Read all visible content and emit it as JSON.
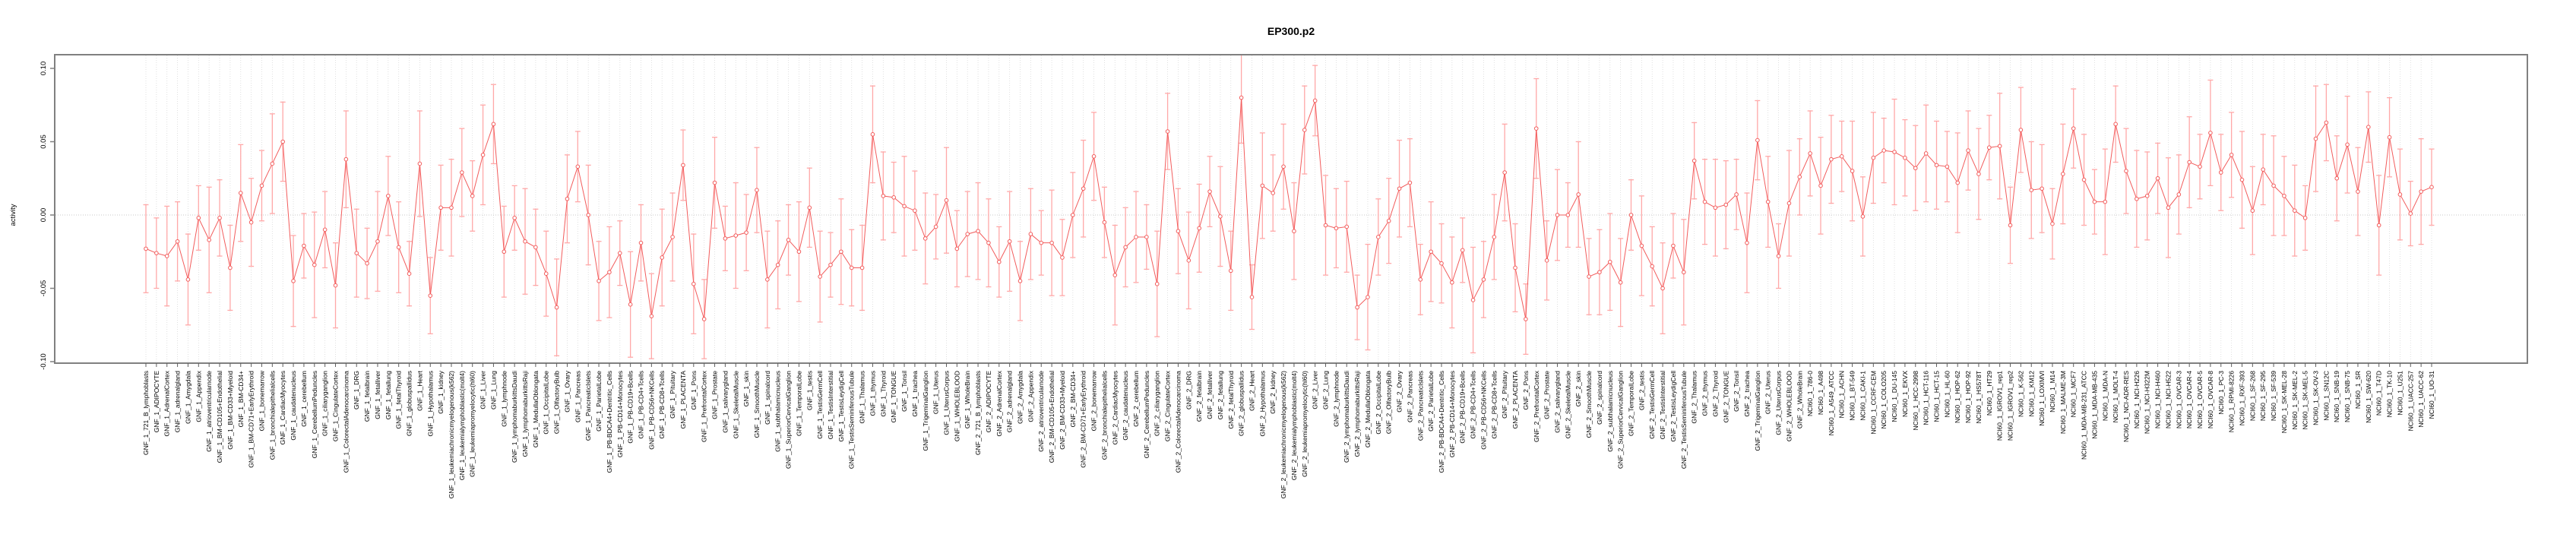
{
  "chart_data": {
    "type": "line",
    "title": "EP300.p2",
    "ylabel": "activity",
    "xlabel": "",
    "ylim": [
      -0.113,
      0.113
    ],
    "yticks": [
      -0.1,
      -0.05,
      0.0,
      0.05,
      0.1
    ],
    "ytick_labels": [
      "-0.10",
      "-0.05",
      "0.00",
      "0.05",
      "0.10"
    ],
    "legend": "none",
    "grid": "vertical dotted gridline at every category; horizontal dotted line at y=0",
    "point_style": "open circle with vertical error bars and caps",
    "colors": {
      "line": "#f25c5c",
      "point_stroke": "#f25c5c",
      "point_fill": "#ffffff",
      "error_bar": "#ffa8a8",
      "grid": "#d9d9d9",
      "zero_line": "#c9c9c9",
      "axis_box": "#808080",
      "tick": "#606060",
      "text": "#000000"
    },
    "categories": [
      "GNF_1_721_B_lymphoblasts",
      "GNF_1_ADIPOCYTE",
      "GNF_1_AdrenalCortex",
      "GNF_1_adrenalgland",
      "GNF_1_Amygdala",
      "GNF_1_Appendix",
      "GNF_1_atrioventricularnode",
      "GNF_1_BM-CD105+Endothelial",
      "GNF_1_BM-CD33+Myeloid",
      "GNF_1_BM-CD34+",
      "GNF_1_BM-CD71+EarlyErythroid",
      "GNF_1_bonemarrow",
      "GNF_1_bronchialepithelialcells",
      "GNF_1_CardiacMyocytes",
      "GNF_1_caudatenucleus",
      "GNF_1_cerebellum",
      "GNF_1_CerebellumPeduncles",
      "GNF_1_ciliaryganglion",
      "GNF_1_CingulateCortex",
      "GNF_1_ColorectalAdenocarcinoma",
      "GNF_1_DRG",
      "GNF_1_fetalbrain",
      "GNF_1_fetalliver",
      "GNF_1_fetallung",
      "GNF_1_fetalThyroid",
      "GNF_1_globuspallidus",
      "GNF_1_Heart",
      "GNF_1_Hypothalamus",
      "GNF_1_kidney",
      "GNF_1_leukemiachronicmyelogenous(k562)",
      "GNF_1_leukemialymphoblastic(molt4)",
      "GNF_1_leukemiapromyelocytic(hl60)",
      "GNF_1_Liver",
      "GNF_1_Lung",
      "GNF_1_lymphnode",
      "GNF_1_lymphomaburkittsDaudi",
      "GNF_1_lymphomaburkittsRaji",
      "GNF_1_MedullaOblongata",
      "GNF_1_OccipitalLobe",
      "GNF_1_OlfactoryBulb",
      "GNF_1_Ovary",
      "GNF_1_Pancreas",
      "GNF_1_PancreaticIslets",
      "GNF_1_ParietalLobe",
      "GNF_1_PB-BDCA4+Dentritic_Cells",
      "GNF_1_PB-CD14+Monocytes",
      "GNF_1_PB-CD19+Bcells",
      "GNF_1_PB-CD4+Tcells",
      "GNF_1_PB-CD56+NKCells",
      "GNF_1_PB-CD8+Tcells",
      "GNF_1_Pituitary",
      "GNF_1_PLACENTA",
      "GNF_1_Pons",
      "GNF_1_PrefrontalCortex",
      "GNF_1_Prostate",
      "GNF_1_salivarygland",
      "GNF_1_SkeletalMuscle",
      "GNF_1_skin",
      "GNF_1_SmoothMuscle",
      "GNF_1_spinalcord",
      "GNF_1_subthalamicnucleus",
      "GNF_1_SuperiorCervicalGanglion",
      "GNF_1_TemporalLobe",
      "GNF_1_testis",
      "GNF_1_TestisGermCell",
      "GNF_1_TestisInterstitial",
      "GNF_1_TestisLeydigCell",
      "GNF_1_TestisSeminiferousTubule",
      "GNF_1_Thalamus",
      "GNF_1_thymus",
      "GNF_1_Thyroid",
      "GNF_1_TONGUE",
      "GNF_1_Tonsil",
      "GNF_1_trachea",
      "GNF_1_TrigeminalGanglion",
      "GNF_1_Uterus",
      "GNF_1_UterusCorpus",
      "GNF_1_WHOLEBLOOD",
      "GNF_1_WholeBrain",
      "GNF_2_721_B_lymphoblasts",
      "GNF_2_ADIPOCYTE",
      "GNF_2_AdrenalCortex",
      "GNF_2_adrenalgland",
      "GNF_2_Amygdala",
      "GNF_2_Appendix",
      "GNF_2_atrioventricularnode",
      "GNF_2_BM-CD105+Endothelial",
      "GNF_2_BM-CD33+Myeloid",
      "GNF_2_BM-CD34+",
      "GNF_2_BM-CD71+EarlyErythroid",
      "GNF_2_bonemarrow",
      "GNF_2_bronchialepithelialcells",
      "GNF_2_CardiacMyocytes",
      "GNF_2_caudatenucleus",
      "GNF_2_cerebellum",
      "GNF_2_CerebellumPeduncles",
      "GNF_2_ciliaryganglion",
      "GNF_2_CingulateCortex",
      "GNF_2_ColorectalAdenocarcinoma",
      "GNF_2_DRG",
      "GNF_2_fetalbrain",
      "GNF_2_fetalliver",
      "GNF_2_fetallung",
      "GNF_2_fetalThyroid",
      "GNF_2_globuspallidus",
      "GNF_2_Heart",
      "GNF_2_Hypothalamus",
      "GNF_2_kidney",
      "GNF_2_leukemiachronicmyelogenous(k562)",
      "GNF_2_leukemialymphoblastic(molt4)",
      "GNF_2_leukemiapromyelocytic(hl60)",
      "GNF_2_Liver",
      "GNF_2_Lung",
      "GNF_2_lymphnode",
      "GNF_2_lymphomaburkittsDaudi",
      "GNF_2_lymphomaburkittsRaji",
      "GNF_2_MedullaOblongata",
      "GNF_2_OccipitalLobe",
      "GNF_2_OlfactoryBulb",
      "GNF_2_Ovary",
      "GNF_2_Pancreas",
      "GNF_2_PancreaticIslets",
      "GNF_2_ParietalLobe",
      "GNF_2_PB-BDCA4+Dentritic_Cells",
      "GNF_2_PB-CD14+Monocytes",
      "GNF_2_PB-CD19+Bcells",
      "GNF_2_PB-CD4+Tcells",
      "GNF_2_PB-CD56+NKCells",
      "GNF_2_PB-CD8+Tcells",
      "GNF_2_Pituitary",
      "GNF_2_PLACENTA",
      "GNF_2_Pons",
      "GNF_2_PrefrontalCortex",
      "GNF_2_Prostate",
      "GNF_2_salivarygland",
      "GNF_2_SkeletalMuscle",
      "GNF_2_skin",
      "GNF_2_SmoothMuscle",
      "GNF_2_spinalcord",
      "GNF_2_subthalamicnucleus",
      "GNF_2_SuperiorCervicalGanglion",
      "GNF_2_TemporalLobe",
      "GNF_2_testis",
      "GNF_2_TestisGermCell",
      "GNF_2_TestisInterstitial",
      "GNF_2_TestisLeydigCell",
      "GNF_2_TestisSeminiferousTubule",
      "GNF_2_Thalamus",
      "GNF_2_thymus",
      "GNF_2_Thyroid",
      "GNF_2_TONGUE",
      "GNF_2_Tonsil",
      "GNF_2_trachea",
      "GNF_2_TrigeminalGanglion",
      "GNF_2_Uterus",
      "GNF_2_UterusCorpus",
      "GNF_2_WHOLEBLOOD",
      "GNF_2_WholeBrain",
      "NCI60_1_786-0",
      "NCI60_1_A498",
      "NCI60_1_A549_ATCC",
      "NCI60_1_ACHN",
      "NCI60_1_BT-549",
      "NCI60_1_CAKI-1",
      "NCI60_1_CCRF-CEM",
      "NCI60_1_COLO205",
      "NCI60_1_DU-145",
      "NCI60_1_EKVX",
      "NCI60_1_HCC-2998",
      "NCI60_1_HCT-116",
      "NCI60_1_HCT-15",
      "NCI60_1_HL-60",
      "NCI60_1_HOP-62",
      "NCI60_1_HOP-92",
      "NCI60_1_HS578T",
      "NCI60_1_HT29",
      "NCI60_1_IGROV1_rep1",
      "NCI60_1_IGROV1_rep2",
      "NCI60_1_K-562",
      "NCI60_1_KM12",
      "NCI60_1_LOXIMVI",
      "NCI60_1_M14",
      "NCI60_1_MALME-3M",
      "NCI60_1_MCF7",
      "NCI60_1_MDA-MB-231_ATCC",
      "NCI60_1_MDA-MB-435",
      "NCI60_1_MDA-N",
      "NCI60_1_MOLT-4",
      "NCI60_1_NCI-ADR-RES",
      "NCI60_1_NCI-H226",
      "NCI60_1_NCI-H322M",
      "NCI60_1_NCI-H460",
      "NCI60_1_NCI-H522",
      "NCI60_1_OVCAR-3",
      "NCI60_1_OVCAR-4",
      "NCI60_1_OVCAR-5",
      "NCI60_1_OVCAR-8",
      "NCI60_1_PC-3",
      "NCI60_1_RPMI-8226",
      "NCI60_1_RXF-393",
      "NCI60_1_SF-268",
      "NCI60_1_SF-295",
      "NCI60_1_SF-539",
      "NCI60_1_SK-MEL-28",
      "NCI60_1_SK-MEL-2",
      "NCI60_1_SK-MEL-5",
      "NCI60_1_SK-OV-3",
      "NCI60_1_SN12C",
      "NCI60_1_SNB-19",
      "NCI60_1_SNB-75",
      "NCI60_1_SR",
      "NCI60_1_SW-620",
      "NCI60_1_T47D",
      "NCI60_1_TK-10",
      "NCI60_1_U251",
      "NCI60_1_UACC-257",
      "NCI60_1_UACC-62",
      "NCI60_1_UO-31"
    ],
    "values": [
      -0.023,
      -0.026,
      -0.028,
      -0.018,
      -0.044,
      -0.002,
      -0.017,
      -0.002,
      -0.036,
      0.015,
      -0.005,
      0.02,
      0.035,
      0.05,
      -0.045,
      -0.021,
      -0.034,
      -0.01,
      -0.048,
      0.038,
      -0.026,
      -0.033,
      -0.018,
      0.013,
      -0.022,
      -0.04,
      0.035,
      -0.055,
      0.005,
      0.005,
      0.029,
      0.013,
      0.041,
      0.062,
      -0.025,
      -0.002,
      -0.018,
      -0.022,
      -0.04,
      -0.063,
      0.011,
      0.033,
      0.0,
      -0.045,
      -0.039,
      -0.026,
      -0.061,
      -0.019,
      -0.069,
      -0.029,
      -0.015,
      0.034,
      -0.047,
      -0.071,
      0.022,
      -0.016,
      -0.014,
      -0.012,
      0.017,
      -0.044,
      -0.034,
      -0.017,
      -0.025,
      0.005,
      -0.042,
      -0.034,
      -0.025,
      -0.036,
      -0.036,
      0.055,
      0.013,
      0.012,
      0.006,
      0.003,
      -0.016,
      -0.008,
      0.01,
      -0.023,
      -0.013,
      -0.011,
      -0.019,
      -0.032,
      -0.018,
      -0.045,
      -0.013,
      -0.019,
      -0.019,
      -0.029,
      0.0,
      0.018,
      0.04,
      -0.005,
      -0.041,
      -0.022,
      -0.015,
      -0.015,
      -0.047,
      0.057,
      -0.011,
      -0.031,
      -0.009,
      0.016,
      -0.001,
      -0.038,
      0.08,
      -0.056,
      0.02,
      0.015,
      0.033,
      -0.011,
      0.058,
      0.078,
      -0.007,
      -0.009,
      -0.008,
      -0.063,
      -0.056,
      -0.015,
      -0.004,
      0.018,
      0.022,
      -0.044,
      -0.025,
      -0.033,
      -0.046,
      -0.024,
      -0.058,
      -0.044,
      -0.015,
      0.029,
      -0.036,
      -0.071,
      0.059,
      -0.031,
      0.0,
      0.0,
      0.014,
      -0.042,
      -0.039,
      -0.032,
      -0.046,
      0.0,
      -0.021,
      -0.035,
      -0.05,
      -0.021,
      -0.039,
      0.037,
      0.009,
      0.005,
      0.007,
      0.014,
      -0.019,
      0.051,
      0.009,
      -0.028,
      0.008,
      0.026,
      0.042,
      0.02,
      0.038,
      0.04,
      0.03,
      -0.001,
      0.039,
      0.044,
      0.043,
      0.039,
      0.032,
      0.042,
      0.034,
      0.033,
      0.022,
      0.044,
      0.028,
      0.046,
      0.047,
      -0.007,
      0.058,
      0.017,
      0.018,
      -0.006,
      0.028,
      0.059,
      0.024,
      0.009,
      0.009,
      0.062,
      0.03,
      0.011,
      0.013,
      0.025,
      0.005,
      0.014,
      0.036,
      0.033,
      0.056,
      0.029,
      0.041,
      0.024,
      0.003,
      0.031,
      0.02,
      0.013,
      0.003,
      -0.002,
      0.052,
      0.063,
      0.025,
      0.048,
      0.016,
      0.06,
      -0.007,
      0.053,
      0.014,
      0.001,
      0.016,
      0.019
    ],
    "errors": [
      0.03,
      0.024,
      0.034,
      0.027,
      0.031,
      0.022,
      0.036,
      0.026,
      0.029,
      0.033,
      0.03,
      0.024,
      0.034,
      0.027,
      0.031,
      0.022,
      0.036,
      0.026,
      0.029,
      0.033,
      0.03,
      0.024,
      0.034,
      0.027,
      0.031,
      0.022,
      0.036,
      0.026,
      0.029,
      0.033,
      0.03,
      0.024,
      0.034,
      0.027,
      0.031,
      0.022,
      0.036,
      0.026,
      0.029,
      0.033,
      0.03,
      0.024,
      0.034,
      0.027,
      0.031,
      0.022,
      0.036,
      0.026,
      0.029,
      0.033,
      0.03,
      0.024,
      0.034,
      0.027,
      0.031,
      0.022,
      0.036,
      0.026,
      0.029,
      0.033,
      0.03,
      0.024,
      0.034,
      0.027,
      0.031,
      0.022,
      0.036,
      0.026,
      0.029,
      0.033,
      0.03,
      0.024,
      0.034,
      0.027,
      0.031,
      0.022,
      0.036,
      0.026,
      0.029,
      0.033,
      0.03,
      0.024,
      0.034,
      0.027,
      0.031,
      0.022,
      0.036,
      0.026,
      0.029,
      0.033,
      0.03,
      0.024,
      0.034,
      0.027,
      0.031,
      0.022,
      0.036,
      0.026,
      0.029,
      0.033,
      0.03,
      0.024,
      0.034,
      0.027,
      0.031,
      0.022,
      0.036,
      0.026,
      0.029,
      0.033,
      0.03,
      0.024,
      0.034,
      0.027,
      0.031,
      0.022,
      0.036,
      0.026,
      0.029,
      0.033,
      0.03,
      0.024,
      0.034,
      0.027,
      0.031,
      0.022,
      0.036,
      0.026,
      0.029,
      0.033,
      0.03,
      0.024,
      0.034,
      0.027,
      0.031,
      0.022,
      0.036,
      0.026,
      0.029,
      0.033,
      0.03,
      0.024,
      0.034,
      0.027,
      0.031,
      0.022,
      0.036,
      0.026,
      0.029,
      0.033,
      0.03,
      0.024,
      0.034,
      0.027,
      0.031,
      0.022,
      0.036,
      0.026,
      0.029,
      0.033,
      0.03,
      0.024,
      0.034,
      0.027,
      0.031,
      0.022,
      0.036,
      0.026,
      0.029,
      0.033,
      0.03,
      0.024,
      0.034,
      0.027,
      0.031,
      0.022,
      0.036,
      0.026,
      0.029,
      0.033,
      0.03,
      0.024,
      0.034,
      0.027,
      0.031,
      0.022,
      0.036,
      0.026,
      0.029,
      0.033,
      0.03,
      0.024,
      0.034,
      0.027,
      0.031,
      0.022,
      0.036,
      0.026,
      0.029,
      0.033,
      0.03,
      0.024,
      0.034,
      0.027,
      0.031,
      0.022,
      0.036,
      0.026,
      0.029,
      0.033,
      0.03,
      0.024,
      0.034,
      0.027,
      0.031,
      0.022,
      0.036,
      0.026
    ]
  }
}
